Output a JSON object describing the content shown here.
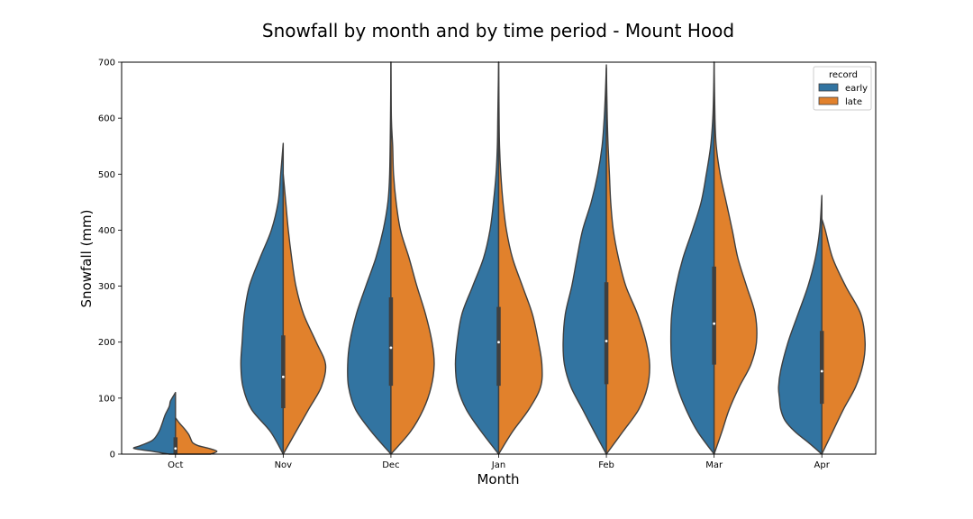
{
  "chart_data": {
    "type": "violin",
    "title": "Snowfall by month and by time period - Mount Hood",
    "xlabel": "Month",
    "ylabel": "Snowfall (mm)",
    "ylim": [
      0,
      700
    ],
    "yticks": [
      0,
      100,
      200,
      300,
      400,
      500,
      600,
      700
    ],
    "categories": [
      "Oct",
      "Nov",
      "Dec",
      "Jan",
      "Feb",
      "Mar",
      "Apr"
    ],
    "split": true,
    "grid": false,
    "legend": {
      "title": "record",
      "placement": "top-right"
    },
    "series": [
      {
        "name": "early",
        "color": "#3274a1",
        "side": "left",
        "profiles": [
          {
            "ymin": 0,
            "ymax": 110,
            "points": [
              [
                0,
                0.15
              ],
              [
                5,
                0.55
              ],
              [
                10,
                1.0
              ],
              [
                15,
                0.85
              ],
              [
                25,
                0.55
              ],
              [
                40,
                0.4
              ],
              [
                55,
                0.32
              ],
              [
                70,
                0.25
              ],
              [
                85,
                0.15
              ],
              [
                95,
                0.12
              ],
              [
                110,
                0.0
              ]
            ]
          },
          {
            "ymin": 0,
            "ymax": 555,
            "points": [
              [
                0,
                0.0
              ],
              [
                40,
                0.3
              ],
              [
                80,
                0.75
              ],
              [
                120,
                0.95
              ],
              [
                160,
                1.0
              ],
              [
                200,
                0.97
              ],
              [
                250,
                0.92
              ],
              [
                300,
                0.8
              ],
              [
                350,
                0.55
              ],
              [
                400,
                0.28
              ],
              [
                450,
                0.12
              ],
              [
                500,
                0.06
              ],
              [
                555,
                0.0
              ]
            ]
          },
          {
            "ymin": 0,
            "ymax": 700,
            "points": [
              [
                0,
                0.0
              ],
              [
                40,
                0.45
              ],
              [
                80,
                0.82
              ],
              [
                120,
                0.98
              ],
              [
                160,
                1.0
              ],
              [
                200,
                0.95
              ],
              [
                250,
                0.8
              ],
              [
                300,
                0.58
              ],
              [
                350,
                0.35
              ],
              [
                400,
                0.18
              ],
              [
                450,
                0.07
              ],
              [
                500,
                0.03
              ],
              [
                600,
                0.01
              ],
              [
                700,
                0.0
              ]
            ]
          },
          {
            "ymin": 0,
            "ymax": 700,
            "points": [
              [
                0,
                0.0
              ],
              [
                40,
                0.4
              ],
              [
                80,
                0.75
              ],
              [
                120,
                0.95
              ],
              [
                160,
                1.0
              ],
              [
                200,
                0.96
              ],
              [
                250,
                0.85
              ],
              [
                300,
                0.6
              ],
              [
                350,
                0.35
              ],
              [
                400,
                0.2
              ],
              [
                450,
                0.12
              ],
              [
                500,
                0.06
              ],
              [
                550,
                0.03
              ],
              [
                600,
                0.02
              ],
              [
                650,
                0.01
              ],
              [
                700,
                0.0
              ]
            ]
          },
          {
            "ymin": 0,
            "ymax": 695,
            "points": [
              [
                0,
                0.0
              ],
              [
                40,
                0.28
              ],
              [
                80,
                0.55
              ],
              [
                120,
                0.82
              ],
              [
                160,
                0.97
              ],
              [
                200,
                1.0
              ],
              [
                250,
                0.95
              ],
              [
                300,
                0.8
              ],
              [
                350,
                0.68
              ],
              [
                400,
                0.55
              ],
              [
                450,
                0.35
              ],
              [
                500,
                0.2
              ],
              [
                550,
                0.1
              ],
              [
                600,
                0.05
              ],
              [
                650,
                0.02
              ],
              [
                695,
                0.0
              ]
            ]
          },
          {
            "ymin": 0,
            "ymax": 700,
            "points": [
              [
                0,
                0.0
              ],
              [
                40,
                0.38
              ],
              [
                80,
                0.65
              ],
              [
                120,
                0.85
              ],
              [
                160,
                0.97
              ],
              [
                200,
                1.0
              ],
              [
                250,
                0.98
              ],
              [
                300,
                0.88
              ],
              [
                350,
                0.72
              ],
              [
                400,
                0.5
              ],
              [
                450,
                0.3
              ],
              [
                500,
                0.18
              ],
              [
                550,
                0.08
              ],
              [
                600,
                0.03
              ],
              [
                650,
                0.01
              ],
              [
                700,
                0.0
              ]
            ]
          },
          {
            "ymin": 0,
            "ymax": 462,
            "points": [
              [
                0,
                0.0
              ],
              [
                20,
                0.3
              ],
              [
                40,
                0.62
              ],
              [
                60,
                0.85
              ],
              [
                80,
                0.95
              ],
              [
                100,
                0.98
              ],
              [
                120,
                1.0
              ],
              [
                150,
                0.95
              ],
              [
                200,
                0.78
              ],
              [
                250,
                0.55
              ],
              [
                300,
                0.32
              ],
              [
                350,
                0.15
              ],
              [
                400,
                0.05
              ],
              [
                462,
                0.0
              ]
            ]
          }
        ]
      },
      {
        "name": "late",
        "color": "#e1812c",
        "side": "right",
        "profiles": [
          {
            "ymin": 0,
            "ymax": 65,
            "points": [
              [
                0,
                0.85
              ],
              [
                5,
                1.0
              ],
              [
                10,
                0.82
              ],
              [
                15,
                0.55
              ],
              [
                20,
                0.42
              ],
              [
                25,
                0.38
              ],
              [
                35,
                0.32
              ],
              [
                45,
                0.22
              ],
              [
                55,
                0.1
              ],
              [
                65,
                0.0
              ]
            ]
          },
          {
            "ymin": 0,
            "ymax": 500,
            "points": [
              [
                0,
                0.0
              ],
              [
                40,
                0.3
              ],
              [
                80,
                0.6
              ],
              [
                120,
                0.9
              ],
              [
                160,
                1.0
              ],
              [
                200,
                0.78
              ],
              [
                250,
                0.48
              ],
              [
                300,
                0.3
              ],
              [
                350,
                0.2
              ],
              [
                400,
                0.12
              ],
              [
                450,
                0.06
              ],
              [
                500,
                0.0
              ]
            ]
          },
          {
            "ymin": 0,
            "ymax": 700,
            "points": [
              [
                0,
                0.0
              ],
              [
                40,
                0.45
              ],
              [
                80,
                0.75
              ],
              [
                120,
                0.93
              ],
              [
                160,
                1.0
              ],
              [
                200,
                0.95
              ],
              [
                250,
                0.8
              ],
              [
                300,
                0.6
              ],
              [
                350,
                0.42
              ],
              [
                400,
                0.22
              ],
              [
                450,
                0.12
              ],
              [
                500,
                0.06
              ],
              [
                550,
                0.04
              ],
              [
                600,
                0.01
              ],
              [
                700,
                0.0
              ]
            ]
          },
          {
            "ymin": 0,
            "ymax": 700,
            "points": [
              [
                0,
                0.0
              ],
              [
                40,
                0.32
              ],
              [
                80,
                0.7
              ],
              [
                120,
                0.97
              ],
              [
                160,
                1.0
              ],
              [
                200,
                0.92
              ],
              [
                250,
                0.78
              ],
              [
                300,
                0.55
              ],
              [
                350,
                0.32
              ],
              [
                400,
                0.18
              ],
              [
                450,
                0.1
              ],
              [
                500,
                0.05
              ],
              [
                550,
                0.02
              ],
              [
                600,
                0.01
              ],
              [
                700,
                0.0
              ]
            ]
          },
          {
            "ymin": 0,
            "ymax": 690,
            "points": [
              [
                0,
                0.0
              ],
              [
                40,
                0.38
              ],
              [
                80,
                0.75
              ],
              [
                120,
                0.95
              ],
              [
                160,
                1.0
              ],
              [
                200,
                0.92
              ],
              [
                250,
                0.72
              ],
              [
                300,
                0.45
              ],
              [
                350,
                0.28
              ],
              [
                400,
                0.16
              ],
              [
                450,
                0.1
              ],
              [
                500,
                0.07
              ],
              [
                550,
                0.04
              ],
              [
                600,
                0.02
              ],
              [
                690,
                0.0
              ]
            ]
          },
          {
            "ymin": 0,
            "ymax": 700,
            "points": [
              [
                0,
                0.0
              ],
              [
                40,
                0.18
              ],
              [
                80,
                0.35
              ],
              [
                120,
                0.58
              ],
              [
                160,
                0.85
              ],
              [
                200,
                0.98
              ],
              [
                250,
                0.95
              ],
              [
                300,
                0.75
              ],
              [
                350,
                0.55
              ],
              [
                400,
                0.42
              ],
              [
                450,
                0.28
              ],
              [
                500,
                0.14
              ],
              [
                550,
                0.05
              ],
              [
                600,
                0.02
              ],
              [
                700,
                0.0
              ]
            ]
          },
          {
            "ymin": 0,
            "ymax": 420,
            "points": [
              [
                0,
                0.0
              ],
              [
                40,
                0.25
              ],
              [
                80,
                0.5
              ],
              [
                120,
                0.78
              ],
              [
                160,
                0.95
              ],
              [
                200,
                1.0
              ],
              [
                250,
                0.9
              ],
              [
                300,
                0.55
              ],
              [
                350,
                0.25
              ],
              [
                400,
                0.08
              ],
              [
                420,
                0.0
              ]
            ]
          }
        ]
      }
    ],
    "quartiles": [
      {
        "q1": 0,
        "median": 10,
        "q3": 30
      },
      {
        "q1": 82,
        "median": 138,
        "q3": 212
      },
      {
        "q1": 122,
        "median": 190,
        "q3": 280
      },
      {
        "q1": 122,
        "median": 200,
        "q3": 263
      },
      {
        "q1": 125,
        "median": 202,
        "q3": 307
      },
      {
        "q1": 160,
        "median": 233,
        "q3": 335
      },
      {
        "q1": 90,
        "median": 148,
        "q3": 220
      }
    ],
    "violin_widths": [
      46,
      47,
      48,
      48,
      48,
      48,
      48
    ]
  }
}
